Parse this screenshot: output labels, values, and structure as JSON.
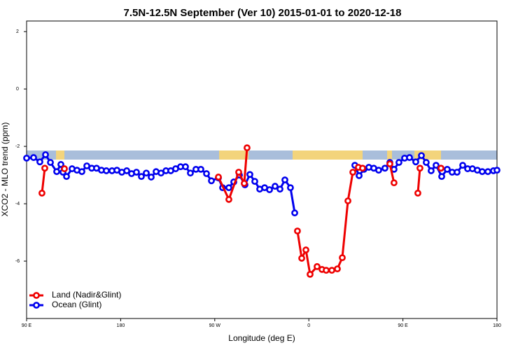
{
  "chart_data": {
    "type": "line",
    "title": "7.5N-12.5N September (Ver 10)   2015-01-01 to 2020-12-18",
    "x_label": "Longitude (deg E)",
    "y_label": "XCO2 - MLO trend (ppm)",
    "xlim": [
      90,
      540
    ],
    "xticks": [
      {
        "value": 90,
        "label": "90 E"
      },
      {
        "value": 180,
        "label": "180"
      },
      {
        "value": 270,
        "label": "90 W"
      },
      {
        "value": 360,
        "label": "0"
      },
      {
        "value": 450,
        "label": "90 E"
      },
      {
        "value": 540,
        "label": "180"
      }
    ],
    "ylim": [
      -8,
      2.37
    ],
    "yticks": [
      2,
      0,
      -2,
      -4,
      -6
    ],
    "legend": "bottom-left",
    "series": [
      {
        "name": "Land (Nadir&Glint)",
        "color": "#ee0000",
        "x": [
          104.7,
          107.4,
          null,
          126.2,
          null,
          273.5,
          283.5,
          292.9,
          298.2,
          300.9,
          null,
          349.1,
          353.2,
          357.2,
          361.2,
          367.9,
          372.6,
          376.6,
          382.0,
          387.3,
          392.0,
          397.4,
          402.1,
          407.4,
          411.4,
          null,
          437.5,
          441.5,
          null,
          464.3,
          466.3,
          null,
          486.4
        ],
        "values": [
          -3.63,
          -2.76,
          null,
          -2.78,
          null,
          -3.07,
          -3.85,
          -2.9,
          -3.29,
          -2.05,
          null,
          -4.95,
          -5.9,
          -5.61,
          -6.46,
          -6.19,
          -6.29,
          -6.32,
          -6.32,
          -6.27,
          -5.88,
          -3.9,
          -2.9,
          -2.73,
          -2.76,
          null,
          -2.61,
          -3.27,
          null,
          -3.63,
          -2.76,
          null,
          -2.76
        ]
      },
      {
        "name": "Ocean (Glint)",
        "color": "#0000ee",
        "x": [
          90,
          96.7,
          102.7,
          108.1,
          112.8,
          118.8,
          122.8,
          124.8,
          128.2,
          133.5,
          138.2,
          142.9,
          147.6,
          152.3,
          156.9,
          161.6,
          166.3,
          171.7,
          176.4,
          181.1,
          185.8,
          190.4,
          195.1,
          199.8,
          204.5,
          209.2,
          213.9,
          218.6,
          223.3,
          227.9,
          232.6,
          237.3,
          242.0,
          246.7,
          252.0,
          256.7,
          262.1,
          266.8,
          273.5,
          277.5,
          283.5,
          288.2,
          293.6,
          298.9,
          303.6,
          308.3,
          313.0,
          317.7,
          322.4,
          327.7,
          332.4,
          337.1,
          342.4,
          346.5,
          null,
          404.0,
          408.1,
          412.7,
          417.4,
          422.1,
          426.8,
          432.8,
          437.5,
          441.5,
          446.2,
          451.6,
          456.3,
          462.3,
          467.7,
          472.3,
          477.0,
          481.7,
          487.1,
          492.4,
          497.1,
          501.8,
          507.2,
          511.9,
          516.5,
          521.2,
          525.9,
          531.3,
          536.6,
          540
        ],
        "values": [
          -2.41,
          -2.39,
          -2.54,
          -2.29,
          -2.56,
          -2.88,
          -2.63,
          -2.9,
          -3.05,
          -2.78,
          -2.83,
          -2.88,
          -2.68,
          -2.76,
          -2.76,
          -2.83,
          -2.85,
          -2.85,
          -2.83,
          -2.9,
          -2.85,
          -2.95,
          -2.9,
          -3.05,
          -2.93,
          -3.07,
          -2.88,
          -2.93,
          -2.85,
          -2.85,
          -2.78,
          -2.71,
          -2.71,
          -2.93,
          -2.8,
          -2.8,
          -2.95,
          -3.2,
          -3.1,
          -3.44,
          -3.44,
          -3.24,
          -3.0,
          -3.34,
          -2.98,
          -3.22,
          -3.49,
          -3.44,
          -3.51,
          -3.39,
          -3.49,
          -3.17,
          -3.44,
          -4.32,
          null,
          -2.66,
          -3.02,
          -2.8,
          -2.73,
          -2.76,
          -2.83,
          -2.76,
          -2.56,
          -2.8,
          -2.56,
          -2.41,
          -2.39,
          -2.54,
          -2.32,
          -2.56,
          -2.85,
          -2.66,
          -3.05,
          -2.8,
          -2.9,
          -2.9,
          -2.66,
          -2.78,
          -2.78,
          -2.83,
          -2.88,
          -2.88,
          -2.85,
          -2.83
        ]
      }
    ]
  }
}
